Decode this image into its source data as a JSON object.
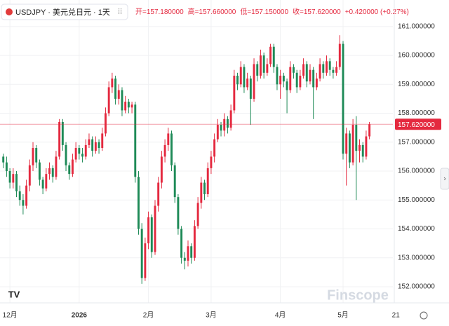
{
  "chart_data": {
    "type": "candlestick",
    "symbol": "USDJPY · 美元兑日元 · 1天",
    "ohlc_readout": [
      "开=157.180000",
      "高=157.660000",
      "低=157.150000",
      "收=157.620000"
    ],
    "change": "+0.420000 (+0.27%)",
    "watermark": "Finscope",
    "logo": "TV",
    "up_color": "#e4293f",
    "down_color": "#1e8a57",
    "last_price": 157.62,
    "last_price_label": "157.620000",
    "ylim": [
      151.49,
      161.19
    ],
    "yticks": [
      {
        "value": 161,
        "label": "161.000000"
      },
      {
        "value": 160,
        "label": "160.000000"
      },
      {
        "value": 159,
        "label": "159.000000"
      },
      {
        "value": 158,
        "label": "158.000000"
      },
      {
        "value": 157,
        "label": "157.000000"
      },
      {
        "value": 156,
        "label": "156.000000"
      },
      {
        "value": 155,
        "label": "155.000000"
      },
      {
        "value": 154,
        "label": "154.000000"
      },
      {
        "value": 153,
        "label": "153.000000"
      },
      {
        "value": 152,
        "label": "152.000000"
      }
    ],
    "xlim": [
      -1,
      118.1
    ],
    "xticks": [
      {
        "value": 2,
        "label": "12月"
      },
      {
        "value": 23,
        "label": "2026"
      },
      {
        "value": 44,
        "label": "2月"
      },
      {
        "value": 63,
        "label": "3月"
      },
      {
        "value": 84,
        "label": "4月"
      },
      {
        "value": 103,
        "label": "5月"
      },
      {
        "value": 119,
        "label": "21"
      }
    ],
    "grid": true,
    "ohlc": [
      [
        156.5,
        156.6,
        156.1,
        156.3
      ],
      [
        156.3,
        156.5,
        155.8,
        156.0
      ],
      [
        156.0,
        156.1,
        155.4,
        155.6
      ],
      [
        155.6,
        156.1,
        155.4,
        155.9
      ],
      [
        155.9,
        156.0,
        155.1,
        155.3
      ],
      [
        155.3,
        155.5,
        154.8,
        155.0
      ],
      [
        155.0,
        155.2,
        154.5,
        154.8
      ],
      [
        154.8,
        155.7,
        154.7,
        155.5
      ],
      [
        155.5,
        156.4,
        155.3,
        156.2
      ],
      [
        156.2,
        157.0,
        156.0,
        156.8
      ],
      [
        156.8,
        156.9,
        156.1,
        156.3
      ],
      [
        156.3,
        156.4,
        155.5,
        155.7
      ],
      [
        155.7,
        155.8,
        155.2,
        155.4
      ],
      [
        155.4,
        156.1,
        155.3,
        155.9
      ],
      [
        155.9,
        156.3,
        155.7,
        156.1
      ],
      [
        156.1,
        156.2,
        155.6,
        155.8
      ],
      [
        155.8,
        156.7,
        155.7,
        156.5
      ],
      [
        156.5,
        157.8,
        156.4,
        157.7
      ],
      [
        157.7,
        157.8,
        156.7,
        156.9
      ],
      [
        156.9,
        157.0,
        156.0,
        156.2
      ],
      [
        156.2,
        156.3,
        155.7,
        155.9
      ],
      [
        155.9,
        156.6,
        155.8,
        156.4
      ],
      [
        156.4,
        157.0,
        156.3,
        156.8
      ],
      [
        156.8,
        156.9,
        156.4,
        156.6
      ],
      [
        156.6,
        156.8,
        156.3,
        156.5
      ],
      [
        156.5,
        157.1,
        156.4,
        156.9
      ],
      [
        156.9,
        157.3,
        156.8,
        157.1
      ],
      [
        157.1,
        157.2,
        156.5,
        156.7
      ],
      [
        156.7,
        157.2,
        156.6,
        157.0
      ],
      [
        157.0,
        157.1,
        156.6,
        156.8
      ],
      [
        156.8,
        157.5,
        156.7,
        157.3
      ],
      [
        157.3,
        158.2,
        157.2,
        158.0
      ],
      [
        158.0,
        159.1,
        157.9,
        158.9
      ],
      [
        158.9,
        159.4,
        158.7,
        159.2
      ],
      [
        159.2,
        159.3,
        158.3,
        158.5
      ],
      [
        158.5,
        159.0,
        158.3,
        158.8
      ],
      [
        158.8,
        158.9,
        157.9,
        158.1
      ],
      [
        158.1,
        158.6,
        158.0,
        158.4
      ],
      [
        158.4,
        158.5,
        158.0,
        158.2
      ],
      [
        158.2,
        158.4,
        158.0,
        158.3
      ],
      [
        158.3,
        158.4,
        155.6,
        155.8
      ],
      [
        155.8,
        156.0,
        153.8,
        154.0
      ],
      [
        154.0,
        154.2,
        152.1,
        152.3
      ],
      [
        152.3,
        153.7,
        152.2,
        153.5
      ],
      [
        153.5,
        154.6,
        153.3,
        154.4
      ],
      [
        154.4,
        154.5,
        153.0,
        153.2
      ],
      [
        153.2,
        155.0,
        153.1,
        154.8
      ],
      [
        154.8,
        155.8,
        154.6,
        155.6
      ],
      [
        155.6,
        156.7,
        155.4,
        156.5
      ],
      [
        156.5,
        157.1,
        156.3,
        156.9
      ],
      [
        156.9,
        157.5,
        156.7,
        157.3
      ],
      [
        157.3,
        157.4,
        156.0,
        156.2
      ],
      [
        156.2,
        156.3,
        154.9,
        155.1
      ],
      [
        155.1,
        155.2,
        153.8,
        154.0
      ],
      [
        154.0,
        154.1,
        152.8,
        153.0
      ],
      [
        153.0,
        153.2,
        152.6,
        152.9
      ],
      [
        152.9,
        153.6,
        152.7,
        153.4
      ],
      [
        153.4,
        153.5,
        152.8,
        153.0
      ],
      [
        153.0,
        154.3,
        152.9,
        154.1
      ],
      [
        154.1,
        155.1,
        154.0,
        154.9
      ],
      [
        154.9,
        155.8,
        154.7,
        155.6
      ],
      [
        155.6,
        155.7,
        155.0,
        155.2
      ],
      [
        155.2,
        156.3,
        155.1,
        156.1
      ],
      [
        156.1,
        156.7,
        155.9,
        156.5
      ],
      [
        156.5,
        157.3,
        156.3,
        157.1
      ],
      [
        157.1,
        157.8,
        157.0,
        157.6
      ],
      [
        157.6,
        157.7,
        157.2,
        157.4
      ],
      [
        157.4,
        158.0,
        157.2,
        157.8
      ],
      [
        157.8,
        157.9,
        157.3,
        157.5
      ],
      [
        157.5,
        158.3,
        157.4,
        158.1
      ],
      [
        158.1,
        159.5,
        158.0,
        159.3
      ],
      [
        159.3,
        159.4,
        158.8,
        159.0
      ],
      [
        159.0,
        159.8,
        158.9,
        159.6
      ],
      [
        159.6,
        159.7,
        158.7,
        158.9
      ],
      [
        158.9,
        159.4,
        158.8,
        159.2
      ],
      [
        159.2,
        159.3,
        157.6,
        158.5
      ],
      [
        158.5,
        159.9,
        158.4,
        159.7
      ],
      [
        159.7,
        159.8,
        159.1,
        159.3
      ],
      [
        159.3,
        160.2,
        159.2,
        160.0
      ],
      [
        160.0,
        160.1,
        159.2,
        159.4
      ],
      [
        159.4,
        159.9,
        159.3,
        159.7
      ],
      [
        159.7,
        160.4,
        159.6,
        160.3
      ],
      [
        160.3,
        160.4,
        159.4,
        159.6
      ],
      [
        159.6,
        159.7,
        158.8,
        159.0
      ],
      [
        159.0,
        159.5,
        158.5,
        159.3
      ],
      [
        159.3,
        159.4,
        158.9,
        159.1
      ],
      [
        159.1,
        159.2,
        158.0,
        158.8
      ],
      [
        158.8,
        159.8,
        158.7,
        159.6
      ],
      [
        159.6,
        159.7,
        159.2,
        159.4
      ],
      [
        159.4,
        159.5,
        158.7,
        158.9
      ],
      [
        158.9,
        159.5,
        158.8,
        159.3
      ],
      [
        159.3,
        159.9,
        159.2,
        159.7
      ],
      [
        159.7,
        159.8,
        158.9,
        159.1
      ],
      [
        159.1,
        159.7,
        159.0,
        159.5
      ],
      [
        159.5,
        159.6,
        157.8,
        158.9
      ],
      [
        158.9,
        159.4,
        158.8,
        159.2
      ],
      [
        159.2,
        159.9,
        159.1,
        159.7
      ],
      [
        159.7,
        159.8,
        159.2,
        159.4
      ],
      [
        159.4,
        160.0,
        159.3,
        159.8
      ],
      [
        159.8,
        159.9,
        159.3,
        159.5
      ],
      [
        159.5,
        159.6,
        159.2,
        159.4
      ],
      [
        159.4,
        159.8,
        159.3,
        159.6
      ],
      [
        159.6,
        160.7,
        159.5,
        160.4
      ],
      [
        160.4,
        160.5,
        156.4,
        156.6
      ],
      [
        156.6,
        157.5,
        155.5,
        157.3
      ],
      [
        157.3,
        157.4,
        156.1,
        156.3
      ],
      [
        156.3,
        157.8,
        156.2,
        157.6
      ],
      [
        157.6,
        157.9,
        155.0,
        156.7
      ],
      [
        156.7,
        157.1,
        156.3,
        156.9
      ],
      [
        156.9,
        157.0,
        156.3,
        156.5
      ],
      [
        156.5,
        157.4,
        156.4,
        157.2
      ],
      [
        157.2,
        157.7,
        157.1,
        157.62
      ]
    ]
  }
}
